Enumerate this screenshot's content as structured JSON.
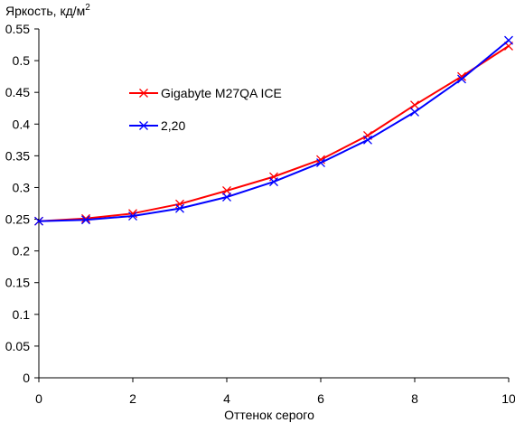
{
  "chart_data": {
    "type": "line",
    "title": "",
    "ylabel_main": "Яркость, кд/м",
    "ylabel_sup": "2",
    "xlabel": "Оттенок серого",
    "xlim": [
      0,
      10
    ],
    "ylim": [
      0,
      0.55
    ],
    "x_ticks": [
      0,
      2,
      4,
      6,
      8,
      10
    ],
    "y_ticks": [
      0,
      0.05,
      0.1,
      0.15,
      0.2,
      0.25,
      0.3,
      0.35,
      0.4,
      0.45,
      0.5,
      0.55
    ],
    "x": [
      0,
      1,
      2,
      3,
      4,
      5,
      6,
      7,
      8,
      9,
      10
    ],
    "grid": false,
    "legend_position": "upper-left-inside",
    "series": [
      {
        "name": "Gigabyte M27QA ICE",
        "color": "#ff0000",
        "marker": "x",
        "values": [
          0.247,
          0.251,
          0.259,
          0.274,
          0.295,
          0.317,
          0.344,
          0.382,
          0.43,
          0.475,
          0.523
        ]
      },
      {
        "name": "2,20",
        "color": "#0000ff",
        "marker": "x",
        "values": [
          0.247,
          0.249,
          0.255,
          0.267,
          0.285,
          0.309,
          0.339,
          0.375,
          0.419,
          0.471,
          0.532
        ]
      }
    ]
  }
}
